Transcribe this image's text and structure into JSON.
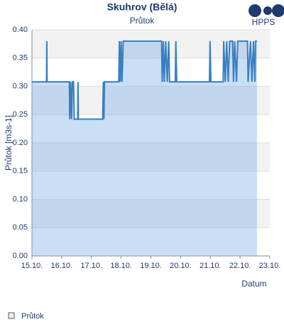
{
  "chart_data": {
    "type": "area",
    "title": "Skuhrov (Bělá)",
    "subtitle": "Průtok",
    "logo": "HPPS",
    "y_label": "Průtok [m3s-1]",
    "x_label": "Datum",
    "xlim": [
      0,
      8
    ],
    "ylim": [
      0,
      0.4
    ],
    "xticks": [
      {
        "value": 0,
        "label": "15.10."
      },
      {
        "value": 1,
        "label": "16.10."
      },
      {
        "value": 2,
        "label": "17.10."
      },
      {
        "value": 3,
        "label": "18.10."
      },
      {
        "value": 4,
        "label": "19.10."
      },
      {
        "value": 5,
        "label": "20.10."
      },
      {
        "value": 6,
        "label": "21.10."
      },
      {
        "value": 7,
        "label": "22.10."
      },
      {
        "value": 8,
        "label": "23.10."
      }
    ],
    "yticks": [
      {
        "value": 0,
        "label": "0.00"
      },
      {
        "value": 0.05,
        "label": "0.05"
      },
      {
        "value": 0.1,
        "label": "0.10"
      },
      {
        "value": 0.15,
        "label": "0.15"
      },
      {
        "value": 0.2,
        "label": "0.20"
      },
      {
        "value": 0.25,
        "label": "0.25"
      },
      {
        "value": 0.3,
        "label": "0.30"
      },
      {
        "value": 0.35,
        "label": "0.35"
      },
      {
        "value": 0.4,
        "label": "0.40"
      }
    ],
    "grid": true,
    "series": [
      {
        "name": "Průtok",
        "color": "#3a7fc1",
        "x": [
          0,
          0.49,
          0.5,
          0.51,
          1.26,
          1.27,
          1.3,
          1.33,
          1.36,
          1.4,
          1.42,
          1.54,
          1.55,
          1.56,
          2.38,
          2.4,
          2.42,
          2.44,
          2.92,
          2.94,
          2.97,
          3.0,
          3.03,
          3.07,
          4.36,
          4.38,
          4.42,
          4.45,
          4.5,
          4.55,
          4.6,
          4.63,
          4.82,
          4.84,
          4.87,
          5.97,
          5.99,
          6.02,
          6.43,
          6.45,
          6.5,
          6.55,
          6.6,
          6.65,
          6.75,
          6.78,
          6.82,
          6.88,
          6.92,
          7.25,
          7.27,
          7.35,
          7.4,
          7.45,
          7.5,
          7.52,
          7.57
        ],
        "values": [
          0.308,
          0.308,
          0.38,
          0.308,
          0.308,
          0.242,
          0.308,
          0.242,
          0.308,
          0.308,
          0.242,
          0.242,
          0.308,
          0.242,
          0.242,
          0.308,
          0.242,
          0.308,
          0.308,
          0.38,
          0.308,
          0.38,
          0.308,
          0.38,
          0.38,
          0.308,
          0.38,
          0.308,
          0.38,
          0.308,
          0.38,
          0.308,
          0.308,
          0.38,
          0.308,
          0.308,
          0.38,
          0.308,
          0.308,
          0.38,
          0.308,
          0.38,
          0.308,
          0.38,
          0.38,
          0.308,
          0.38,
          0.308,
          0.38,
          0.38,
          0.308,
          0.38,
          0.308,
          0.38,
          0.308,
          0.38,
          0.38
        ]
      }
    ]
  }
}
